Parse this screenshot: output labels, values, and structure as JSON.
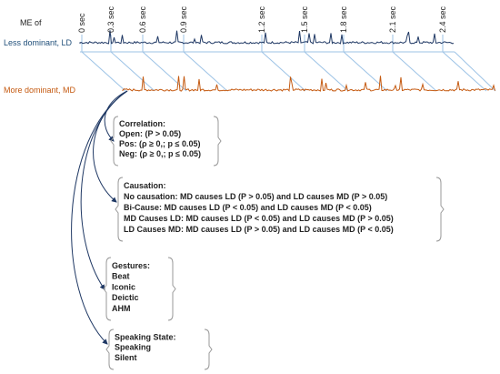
{
  "header": {
    "title": "ME of",
    "ld_label": "Less dominant, LD",
    "md_label": "More dominant, MD"
  },
  "time_labels": [
    "0 sec",
    "0.3 sec",
    "0.6 sec",
    "0.9 sec",
    "1.2 sec",
    "1.5 sec",
    "1.8 sec",
    "2.1 sec",
    "2.4 sec"
  ],
  "boxes": [
    {
      "title": "Correlation:",
      "lines": [
        "Open: (P > 0.05)",
        "Pos: (ρ ≥ 0,; p ≤ 0.05)",
        "Neg:  (ρ ≥ 0,; p ≤ 0.05)"
      ]
    },
    {
      "title": "Causation:",
      "lines": [
        "No causation: MD causes LD (P > 0.05) and LD causes MD (P > 0.05)",
        "Bi-Cause: MD causes LD (P < 0.05) and LD causes MD (P < 0.05)",
        "MD Causes LD: MD causes LD (P < 0.05) and LD causes MD (P > 0.05)",
        "LD Causes MD: MD causes LD (P > 0.05) and LD causes MD (P < 0.05)"
      ]
    },
    {
      "title": "Gestures:",
      "lines": [
        "Beat",
        "Iconic",
        "Deictic",
        "AHM"
      ]
    },
    {
      "title": "Speaking State:",
      "lines": [
        "Speaking",
        "Silent"
      ]
    }
  ]
}
